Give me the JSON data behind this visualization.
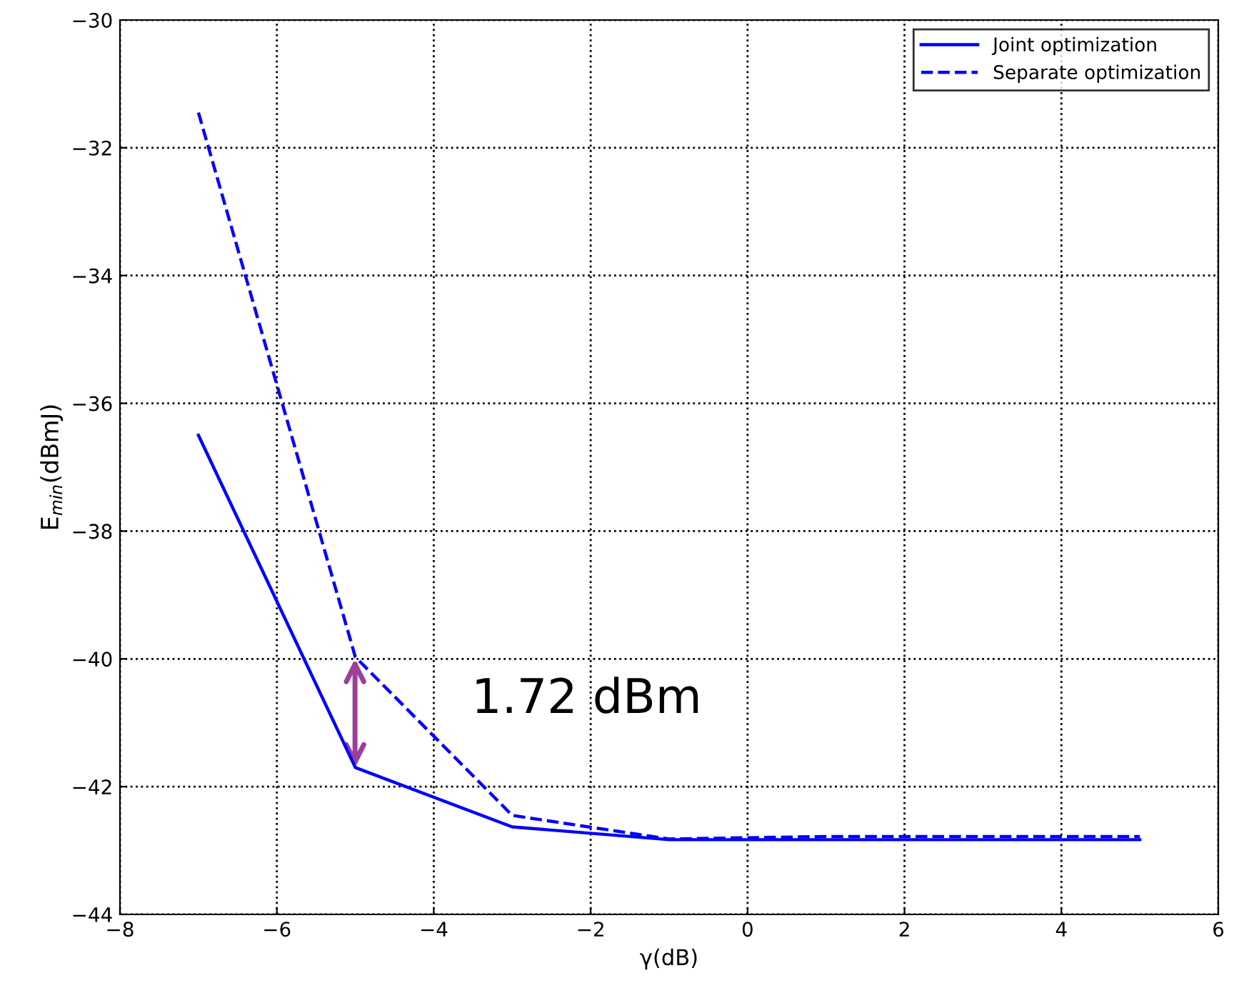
{
  "chart_data": {
    "type": "line",
    "xlabel": "γ(dB)",
    "ylabel": "E$_{min}$(dBmJ)",
    "x": [
      -7,
      -5,
      -3,
      -1,
      1,
      3,
      5
    ],
    "series": [
      {
        "name": "Joint optimization",
        "color": "#0000ff",
        "line_style": "solid",
        "values": [
          -36.5,
          -41.7,
          -42.63,
          -42.83,
          -42.83,
          -42.83,
          -42.83
        ]
      },
      {
        "name": "Separate optimization",
        "color": "#0000ff",
        "line_style": "dashed",
        "values": [
          -31.45,
          -39.97,
          -42.45,
          -42.82,
          -42.78,
          -42.78,
          -42.78
        ]
      }
    ],
    "annotations": [
      "1.72 dBm"
    ],
    "xlim": [
      -8,
      6
    ],
    "xticks": [
      -8,
      -6,
      -4,
      -2,
      0,
      2,
      4,
      6
    ],
    "ylim": [
      -44,
      -30
    ],
    "yticks": [
      -44,
      -42,
      -40,
      -38,
      -36,
      -34,
      -32,
      -30
    ],
    "grid": true,
    "legend": "top right",
    "marker": "none"
  }
}
